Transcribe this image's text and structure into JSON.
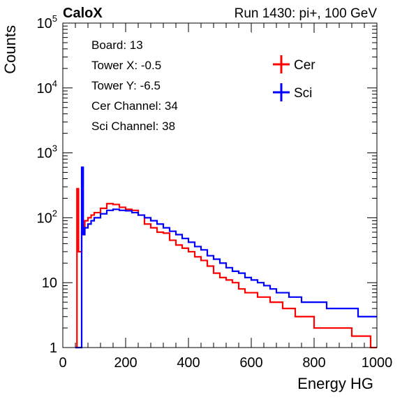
{
  "header": {
    "experiment": "CaloX",
    "run_info": "Run 1430: pi+, 100 GeV"
  },
  "info_box": {
    "lines": [
      "Board: 13",
      "Tower X: -0.5",
      "Tower Y: -6.5",
      "Cer Channel: 34",
      "Sci Channel: 38"
    ]
  },
  "chart_data": {
    "type": "line",
    "style": "step histogram",
    "title": "",
    "xlabel": "Energy HG",
    "ylabel": "Counts",
    "xlim": [
      0,
      1000
    ],
    "ylim": [
      1,
      100000
    ],
    "y_scale": "log",
    "grid": false,
    "legend_position": "top-right",
    "x_ticks": [
      "0",
      "200",
      "400",
      "600",
      "800",
      "1000"
    ],
    "y_ticks": [
      {
        "value": 1,
        "base": "1",
        "exp": ""
      },
      {
        "value": 10,
        "base": "10",
        "exp": ""
      },
      {
        "value": 100,
        "base": "10",
        "exp": "2"
      },
      {
        "value": 1000,
        "base": "10",
        "exp": "3"
      },
      {
        "value": 10000,
        "base": "10",
        "exp": "4"
      },
      {
        "value": 100000,
        "base": "10",
        "exp": "5"
      }
    ],
    "series": [
      {
        "name": "Cer",
        "color": "#ff0000",
        "x": [
          40,
          45,
          50,
          60,
          70,
          80,
          90,
          100,
          120,
          140,
          160,
          180,
          200,
          220,
          240,
          260,
          280,
          300,
          320,
          340,
          360,
          380,
          400,
          420,
          440,
          460,
          480,
          500,
          520,
          540,
          560,
          580,
          600,
          620,
          640,
          660,
          680,
          700,
          720,
          740,
          760,
          780,
          800,
          820,
          840,
          860,
          880,
          900,
          920,
          940,
          960,
          980,
          1000
        ],
        "values": [
          1,
          280,
          30,
          60,
          90,
          100,
          110,
          120,
          140,
          165,
          160,
          145,
          135,
          130,
          110,
          80,
          70,
          60,
          58,
          45,
          38,
          34,
          30,
          25,
          22,
          18,
          14,
          12,
          11,
          10,
          8,
          7,
          7,
          6,
          6,
          5,
          5,
          4,
          4,
          3,
          3,
          3,
          2,
          2,
          2,
          2,
          2,
          2,
          1.5,
          1.5,
          1.5,
          1,
          1
        ]
      },
      {
        "name": "Sci",
        "color": "#0000ff",
        "x": [
          40,
          55,
          60,
          65,
          70,
          80,
          90,
          100,
          120,
          140,
          160,
          180,
          200,
          220,
          240,
          260,
          280,
          300,
          320,
          340,
          360,
          380,
          400,
          420,
          440,
          460,
          480,
          500,
          520,
          540,
          560,
          580,
          600,
          620,
          640,
          660,
          680,
          700,
          720,
          740,
          760,
          780,
          800,
          820,
          840,
          860,
          880,
          900,
          920,
          940,
          960,
          980,
          1000
        ],
        "values": [
          1,
          1,
          600,
          55,
          70,
          80,
          90,
          100,
          115,
          130,
          135,
          130,
          128,
          120,
          110,
          100,
          90,
          80,
          70,
          62,
          55,
          48,
          42,
          36,
          32,
          26,
          23,
          20,
          17,
          15,
          14,
          12,
          11,
          10,
          9,
          8,
          7,
          7,
          6,
          6,
          5,
          5,
          5,
          5,
          4,
          4,
          4,
          4,
          4,
          3,
          3,
          3,
          3
        ]
      }
    ]
  }
}
